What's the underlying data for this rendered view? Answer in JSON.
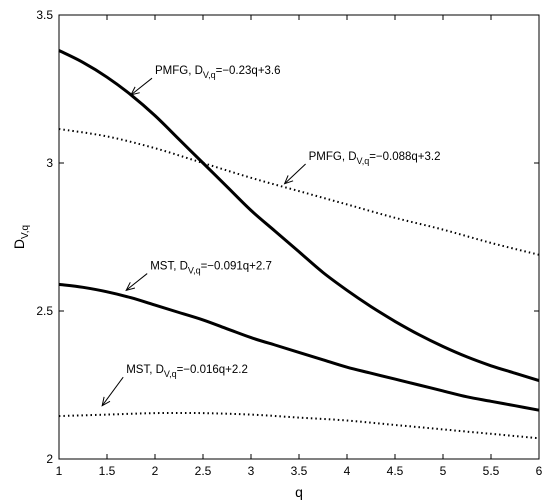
{
  "chart_data": {
    "type": "line",
    "xlabel": "q",
    "ylabel": {
      "main": "D",
      "sub": "V,q"
    },
    "xlim": [
      1,
      6
    ],
    "ylim": [
      2,
      3.5
    ],
    "xticks": [
      1,
      1.5,
      2,
      2.5,
      3,
      3.5,
      4,
      4.5,
      5,
      5.5,
      6
    ],
    "xtick_labels": [
      "1",
      "1.5",
      "2",
      "2.5",
      "3",
      "3.5",
      "4",
      "4.5",
      "5",
      "5.5",
      "6"
    ],
    "yticks": [
      2,
      2.5,
      3,
      3.5
    ],
    "ytick_labels": [
      "2",
      "2.5",
      "3",
      "3.5"
    ],
    "grid": false,
    "series": [
      {
        "style": "solid",
        "x": [
          1,
          1.25,
          1.5,
          1.75,
          2,
          2.25,
          2.5,
          2.75,
          3,
          3.25,
          3.5,
          3.75,
          4,
          4.25,
          4.5,
          4.75,
          5,
          5.25,
          5.5,
          5.75,
          6
        ],
        "y": [
          3.38,
          3.34,
          3.29,
          3.23,
          3.16,
          3.08,
          3.0,
          2.92,
          2.84,
          2.77,
          2.7,
          2.63,
          2.57,
          2.515,
          2.465,
          2.42,
          2.38,
          2.345,
          2.315,
          2.29,
          2.265
        ]
      },
      {
        "style": "dotted",
        "x": [
          1,
          1.5,
          2,
          2.5,
          3,
          3.5,
          4,
          4.5,
          5,
          5.5,
          6
        ],
        "y": [
          3.115,
          3.09,
          3.05,
          3.0,
          2.95,
          2.905,
          2.86,
          2.815,
          2.775,
          2.73,
          2.69
        ]
      },
      {
        "style": "solid",
        "x": [
          1,
          1.25,
          1.5,
          1.75,
          2,
          2.25,
          2.5,
          2.75,
          3,
          3.25,
          3.5,
          3.75,
          4,
          4.25,
          4.5,
          4.75,
          5,
          5.25,
          5.5,
          5.75,
          6
        ],
        "y": [
          2.59,
          2.58,
          2.565,
          2.545,
          2.52,
          2.495,
          2.47,
          2.44,
          2.41,
          2.385,
          2.36,
          2.335,
          2.31,
          2.29,
          2.27,
          2.25,
          2.23,
          2.21,
          2.195,
          2.18,
          2.165
        ]
      },
      {
        "style": "dotted",
        "x": [
          1,
          1.5,
          2,
          2.5,
          3,
          3.5,
          4,
          4.5,
          5,
          5.5,
          6
        ],
        "y": [
          2.145,
          2.15,
          2.155,
          2.155,
          2.15,
          2.14,
          2.13,
          2.115,
          2.1,
          2.085,
          2.07
        ]
      }
    ],
    "annotations": [
      {
        "prefix": "PMFG, D",
        "sub": "V,q",
        "suffix": "=−0.23q+3.6",
        "x": 2.0,
        "y": 3.3,
        "arrow_to": [
          1.75,
          3.23
        ]
      },
      {
        "prefix": "PMFG, D",
        "sub": "V,q",
        "suffix": "=−0.088q+3.2",
        "x": 3.6,
        "y": 3.01,
        "arrow_to": [
          3.35,
          2.93
        ]
      },
      {
        "prefix": "MST, D",
        "sub": "V,q",
        "suffix": "=−0.091q+2.7",
        "x": 1.95,
        "y": 2.64,
        "arrow_to": [
          1.7,
          2.57
        ]
      },
      {
        "prefix": "MST, D",
        "sub": "V,q",
        "suffix": "=−0.016q+2.2",
        "x": 1.7,
        "y": 2.29,
        "arrow_to": [
          1.45,
          2.18
        ]
      }
    ]
  }
}
